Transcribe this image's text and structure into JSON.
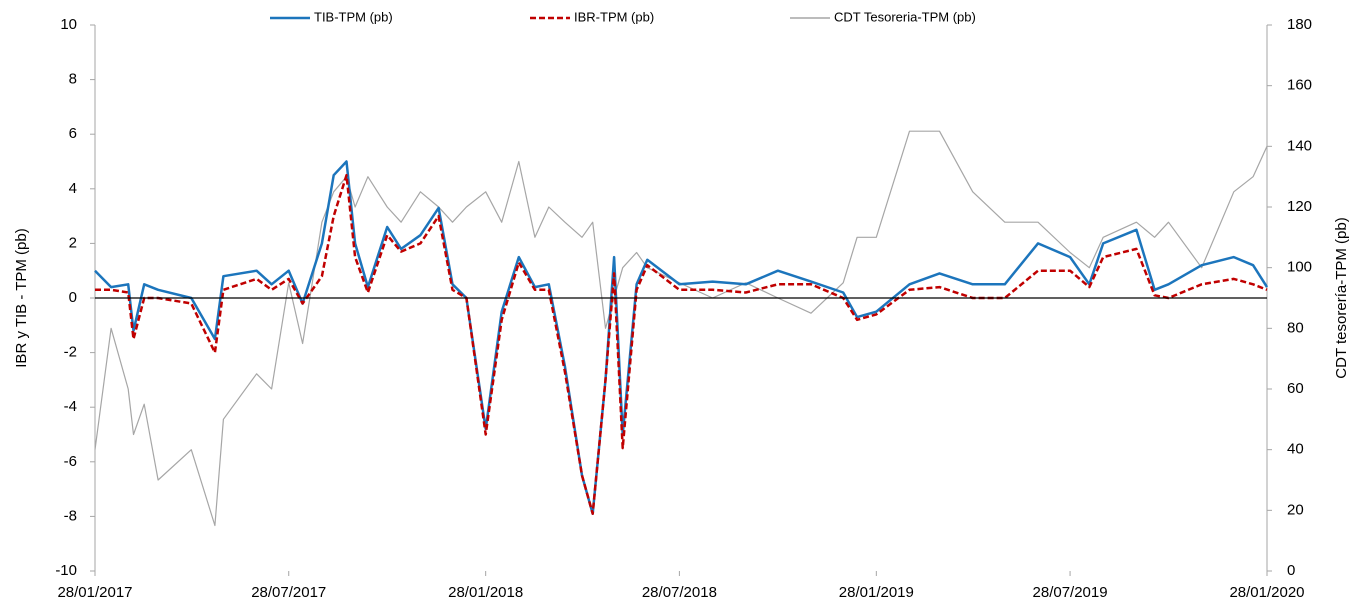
{
  "chart_data": {
    "type": "line",
    "ylabel": "IBR y TIB - TPM (pb)",
    "y2label": "CDT tesorería-TPM  (pb)",
    "x": [
      "28/01/2017",
      "12/02/2017",
      "28/02/2017",
      "05/03/2017",
      "15/03/2017",
      "28/03/2017",
      "28/04/2017",
      "20/05/2017",
      "28/05/2017",
      "28/06/2017",
      "12/07/2017",
      "28/07/2017",
      "10/08/2017",
      "28/08/2017",
      "08/09/2017",
      "20/09/2017",
      "28/09/2017",
      "10/10/2017",
      "28/10/2017",
      "10/11/2017",
      "28/11/2017",
      "15/12/2017",
      "28/12/2017",
      "10/01/2018",
      "28/01/2018",
      "12/02/2018",
      "28/02/2018",
      "15/03/2018",
      "28/03/2018",
      "12/04/2018",
      "28/04/2018",
      "08/05/2018",
      "20/05/2018",
      "28/05/2018",
      "05/06/2018",
      "18/06/2018",
      "28/06/2018",
      "28/07/2018",
      "28/08/2018",
      "28/09/2018",
      "28/10/2018",
      "28/11/2018",
      "28/12/2018",
      "10/01/2019",
      "28/01/2019",
      "28/02/2019",
      "28/03/2019",
      "28/04/2019",
      "28/05/2019",
      "28/06/2019",
      "28/07/2019",
      "15/08/2019",
      "28/08/2019",
      "28/09/2019",
      "15/10/2019",
      "28/10/2019",
      "28/11/2019",
      "28/12/2019",
      "15/01/2020",
      "28/01/2020"
    ],
    "series": [
      {
        "name": "TIB-TPM (pb)",
        "color": "#1c75bc",
        "dash": false,
        "values": [
          1.0,
          0.4,
          0.5,
          -1.2,
          0.5,
          0.3,
          0.0,
          -1.5,
          0.8,
          1.0,
          0.5,
          1.0,
          -0.2,
          2.0,
          4.5,
          5.0,
          2.0,
          0.4,
          2.6,
          1.8,
          2.3,
          3.3,
          0.5,
          0.0,
          -4.8,
          -0.5,
          1.5,
          0.4,
          0.5,
          -2.5,
          -6.5,
          -7.9,
          -3.0,
          1.5,
          -5.0,
          0.5,
          1.4,
          0.5,
          0.6,
          0.5,
          1.0,
          0.6,
          0.2,
          -0.7,
          -0.5,
          0.5,
          0.9,
          0.5,
          0.5,
          2.0,
          1.5,
          0.5,
          2.0,
          2.5,
          0.3,
          0.5,
          1.2,
          1.5,
          1.2,
          0.4
        ]
      },
      {
        "name": "IBR-TPM (pb)",
        "color": "#c00000",
        "dash": true,
        "values": [
          0.3,
          0.3,
          0.2,
          -1.5,
          0.0,
          0.0,
          -0.2,
          -2.0,
          0.3,
          0.7,
          0.3,
          0.7,
          -0.2,
          0.8,
          3.0,
          4.5,
          1.5,
          0.2,
          2.3,
          1.7,
          2.0,
          3.0,
          0.3,
          0.0,
          -5.0,
          -0.8,
          1.3,
          0.3,
          0.3,
          -2.7,
          -6.5,
          -7.9,
          -3.0,
          0.9,
          -5.5,
          0.3,
          1.2,
          0.3,
          0.3,
          0.2,
          0.5,
          0.5,
          0.0,
          -0.8,
          -0.6,
          0.3,
          0.4,
          0.0,
          0.0,
          1.0,
          1.0,
          0.4,
          1.5,
          1.8,
          0.1,
          0.0,
          0.5,
          0.7,
          0.5,
          0.3
        ]
      },
      {
        "name": "CDT Tesoreria-TPM (pb)",
        "color": "#a6a6a6",
        "dash": false,
        "axis": "y2",
        "values": [
          40,
          80,
          60,
          45,
          55,
          30,
          40,
          15,
          50,
          65,
          60,
          95,
          75,
          115,
          125,
          130,
          120,
          130,
          120,
          115,
          125,
          120,
          115,
          120,
          125,
          115,
          135,
          110,
          120,
          115,
          110,
          115,
          80,
          90,
          100,
          105,
          100,
          95,
          90,
          95,
          90,
          85,
          95,
          110,
          110,
          145,
          145,
          125,
          115,
          115,
          105,
          100,
          110,
          115,
          110,
          115,
          100,
          125,
          130,
          140
        ]
      }
    ],
    "xticks": [
      "28/01/2017",
      "28/07/2017",
      "28/01/2018",
      "28/07/2018",
      "28/01/2019",
      "28/07/2019",
      "28/01/2020"
    ],
    "ylim": [
      -10,
      10
    ],
    "yticks": [
      -10,
      -8,
      -6,
      -4,
      -2,
      0,
      2,
      4,
      6,
      8,
      10
    ],
    "y2lim": [
      0,
      180
    ],
    "y2ticks": [
      0,
      20,
      40,
      60,
      80,
      100,
      120,
      140,
      160,
      180
    ],
    "legend": "top"
  }
}
